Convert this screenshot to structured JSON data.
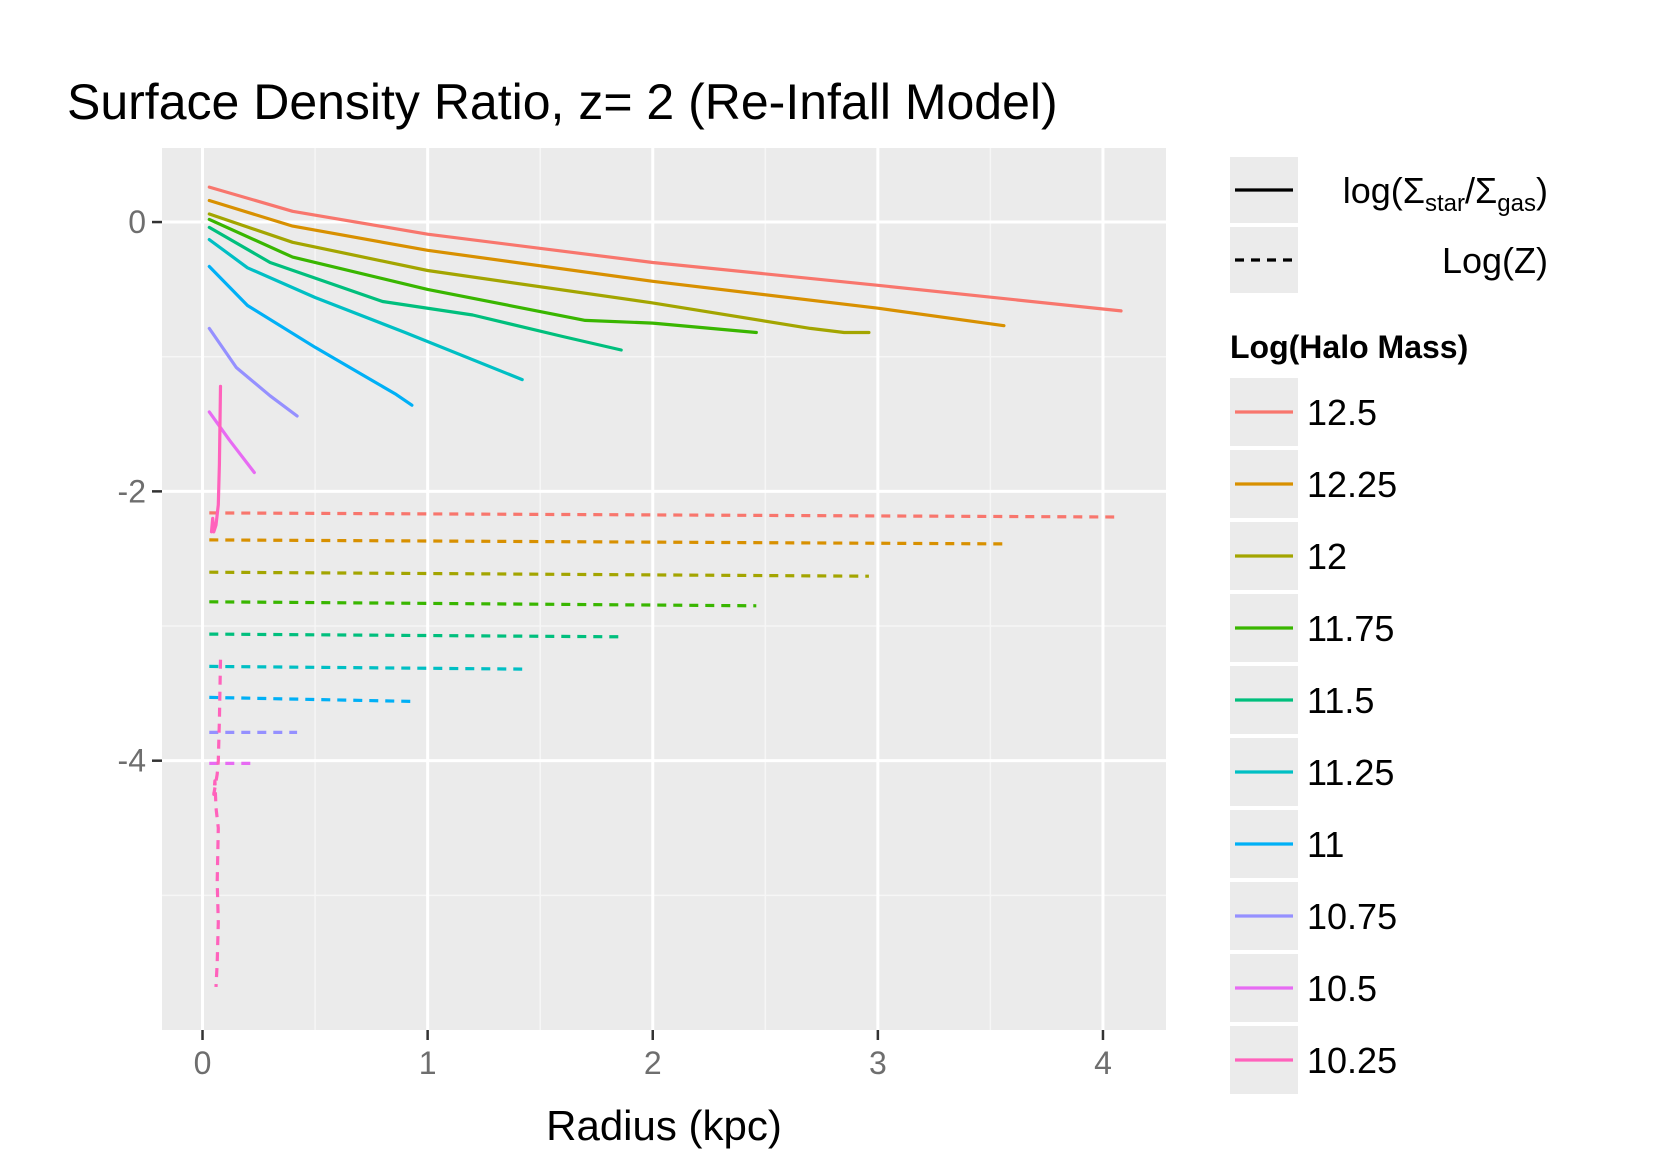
{
  "chart_data": {
    "type": "line",
    "title": "Surface Density Ratio, z= 2 (Re-Infall Model)",
    "xlabel": "Radius (kpc)",
    "ylabel": "",
    "xlim": [
      -0.18,
      4.28
    ],
    "ylim": [
      -6.0,
      0.55
    ],
    "x_ticks": [
      0,
      1,
      2,
      3,
      4
    ],
    "y_ticks": [
      0,
      -2,
      -4
    ],
    "grid": true,
    "background": "#ebebeb",
    "legend_placement": "right",
    "linetype_legend": {
      "entries": [
        {
          "style": "solid",
          "label_parts": [
            "log(",
            "Σ",
            "star",
            "/",
            "Σ",
            "gas",
            ")"
          ]
        },
        {
          "style": "dashed",
          "label": "Log(Z)"
        }
      ]
    },
    "color_legend": {
      "title": "Log(Halo Mass)",
      "labels": [
        "12.5",
        "12.25",
        "12",
        "11.75",
        "11.5",
        "11.25",
        "11",
        "10.75",
        "10.5",
        "10.25"
      ]
    },
    "series": [
      {
        "name": "12.5",
        "color": "#F8766D",
        "solid": {
          "x": [
            0.03,
            0.4,
            1.0,
            2.0,
            3.0,
            4.08
          ],
          "y": [
            0.26,
            0.08,
            -0.09,
            -0.3,
            -0.47,
            -0.66
          ]
        },
        "dashed": {
          "x": [
            0.03,
            4.05
          ],
          "y": [
            -2.16,
            -2.19
          ]
        }
      },
      {
        "name": "12.25",
        "color": "#D89000",
        "solid": {
          "x": [
            0.03,
            0.4,
            1.0,
            2.0,
            3.0,
            3.56
          ],
          "y": [
            0.16,
            -0.03,
            -0.21,
            -0.44,
            -0.64,
            -0.77
          ]
        },
        "dashed": {
          "x": [
            0.03,
            3.56
          ],
          "y": [
            -2.36,
            -2.39
          ]
        }
      },
      {
        "name": "12",
        "color": "#A3A500",
        "solid": {
          "x": [
            0.03,
            0.4,
            1.0,
            2.0,
            2.7,
            2.85,
            2.96
          ],
          "y": [
            0.06,
            -0.15,
            -0.36,
            -0.6,
            -0.79,
            -0.82,
            -0.82
          ]
        },
        "dashed": {
          "x": [
            0.03,
            2.96
          ],
          "y": [
            -2.6,
            -2.63
          ]
        }
      },
      {
        "name": "11.75",
        "color": "#39B600",
        "solid": {
          "x": [
            0.03,
            0.4,
            1.0,
            1.7,
            2.0,
            2.46
          ],
          "y": [
            0.02,
            -0.26,
            -0.5,
            -0.73,
            -0.75,
            -0.82
          ]
        },
        "dashed": {
          "x": [
            0.03,
            2.46
          ],
          "y": [
            -2.82,
            -2.85
          ]
        }
      },
      {
        "name": "11.5",
        "color": "#00BF7D",
        "solid": {
          "x": [
            0.03,
            0.3,
            0.8,
            1.2,
            1.6,
            1.86
          ],
          "y": [
            -0.04,
            -0.3,
            -0.59,
            -0.69,
            -0.85,
            -0.95
          ]
        },
        "dashed": {
          "x": [
            0.03,
            1.86
          ],
          "y": [
            -3.06,
            -3.08
          ]
        }
      },
      {
        "name": "11.25",
        "color": "#00BFC4",
        "solid": {
          "x": [
            0.03,
            0.2,
            0.5,
            0.9,
            1.42
          ],
          "y": [
            -0.13,
            -0.34,
            -0.56,
            -0.82,
            -1.17
          ]
        },
        "dashed": {
          "x": [
            0.03,
            1.42
          ],
          "y": [
            -3.3,
            -3.32
          ]
        }
      },
      {
        "name": "11",
        "color": "#00B0F6",
        "solid": {
          "x": [
            0.03,
            0.2,
            0.5,
            0.86,
            0.93
          ],
          "y": [
            -0.33,
            -0.62,
            -0.93,
            -1.28,
            -1.36
          ]
        },
        "dashed": {
          "x": [
            0.03,
            0.93
          ],
          "y": [
            -3.53,
            -3.56
          ]
        }
      },
      {
        "name": "10.75",
        "color": "#9590FF",
        "solid": {
          "x": [
            0.03,
            0.15,
            0.3,
            0.42
          ],
          "y": [
            -0.79,
            -1.08,
            -1.29,
            -1.44
          ]
        },
        "dashed": {
          "x": [
            0.03,
            0.42
          ],
          "y": [
            -3.79,
            -3.79
          ]
        }
      },
      {
        "name": "10.5",
        "color": "#E76BF3",
        "solid": {
          "x": [
            0.03,
            0.12,
            0.23
          ],
          "y": [
            -1.41,
            -1.62,
            -1.86
          ]
        },
        "dashed": {
          "x": [
            0.03,
            0.23
          ],
          "y": [
            -4.02,
            -4.02
          ]
        }
      },
      {
        "name": "10.25",
        "color": "#FF62BC",
        "solid": {
          "x": [
            0.08,
            0.075,
            0.07,
            0.06,
            0.05,
            0.045,
            0.04
          ],
          "y": [
            -1.22,
            -1.8,
            -2.1,
            -2.25,
            -2.3,
            -2.2,
            -2.3
          ]
        },
        "dashed": {
          "x": [
            0.08,
            0.075,
            0.07,
            0.065,
            0.05,
            0.055,
            0.06,
            0.07,
            0.065,
            0.07,
            0.065,
            0.06
          ],
          "y": [
            -3.25,
            -3.7,
            -4.0,
            -4.1,
            -4.25,
            -4.15,
            -4.35,
            -4.5,
            -4.9,
            -5.2,
            -5.5,
            -5.68
          ]
        }
      }
    ]
  }
}
